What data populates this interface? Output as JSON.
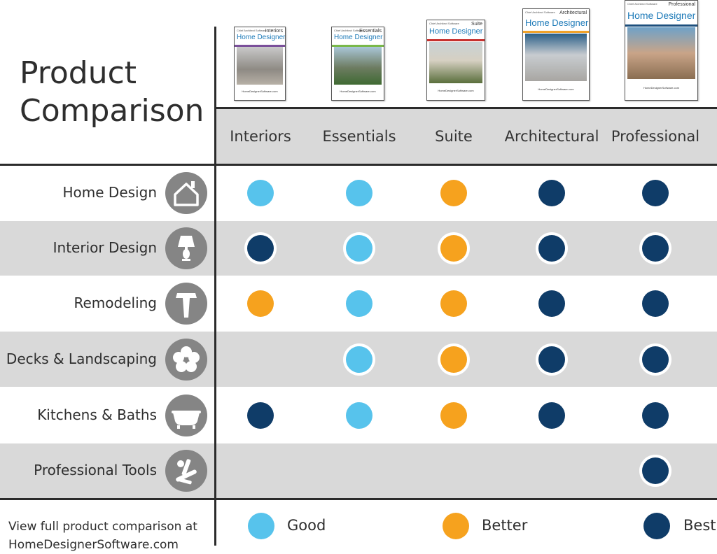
{
  "title_line1": "Product",
  "title_line2": "Comparison",
  "columns": [
    "Interiors",
    "Essentials",
    "Suite",
    "Architectural",
    "Professional"
  ],
  "products": [
    {
      "brand": "Chief Architect Software",
      "edition": "Interiors",
      "name": "Home Designer",
      "stripe": "#7a4f9a",
      "site": "HomeDesignerSoftware.com"
    },
    {
      "brand": "Chief Architect Software",
      "edition": "Essentials",
      "name": "Home Designer",
      "stripe": "#79b84a",
      "site": "HomeDesignerSoftware.com"
    },
    {
      "brand": "Chief Architect Software",
      "edition": "Suite",
      "name": "Home Designer",
      "stripe": "#c6302e",
      "site": "HomeDesignerSoftware.com"
    },
    {
      "brand": "Chief Architect Software",
      "edition": "Architectural",
      "name": "Home Designer",
      "stripe": "#f0a22a",
      "site": "HomeDesignerSoftware.com"
    },
    {
      "brand": "Chief Architect Software",
      "edition": "Professional",
      "name": "Home Designer",
      "stripe": "#1d4f7d",
      "site": "HomeDesignerSoftware.com"
    }
  ],
  "features": [
    {
      "label": "Home Design",
      "icon": "house-icon",
      "ratings": [
        "Good",
        "Good",
        "Better",
        "Best",
        "Best"
      ]
    },
    {
      "label": "Interior Design",
      "icon": "lamp-icon",
      "ratings": [
        "Best",
        "Good",
        "Better",
        "Best",
        "Best"
      ]
    },
    {
      "label": "Remodeling",
      "icon": "hammer-icon",
      "ratings": [
        "Better",
        "Good",
        "Better",
        "Best",
        "Best"
      ]
    },
    {
      "label": "Decks & Landscaping",
      "icon": "flower-icon",
      "ratings": [
        "",
        "Good",
        "Better",
        "Best",
        "Best"
      ]
    },
    {
      "label": "Kitchens & Baths",
      "icon": "bathtub-icon",
      "ratings": [
        "Best",
        "Good",
        "Better",
        "Best",
        "Best"
      ]
    },
    {
      "label": "Professional Tools",
      "icon": "tools-icon",
      "ratings": [
        "",
        "",
        "",
        "",
        "Best"
      ]
    }
  ],
  "legend": [
    {
      "label": "Good",
      "color": "#57c3ec"
    },
    {
      "label": "Better",
      "color": "#f6a21e"
    },
    {
      "label": "Best",
      "color": "#0f3c68"
    }
  ],
  "footer_line1": "View full product comparison at",
  "footer_line2": "HomeDesignerSoftware.com"
}
